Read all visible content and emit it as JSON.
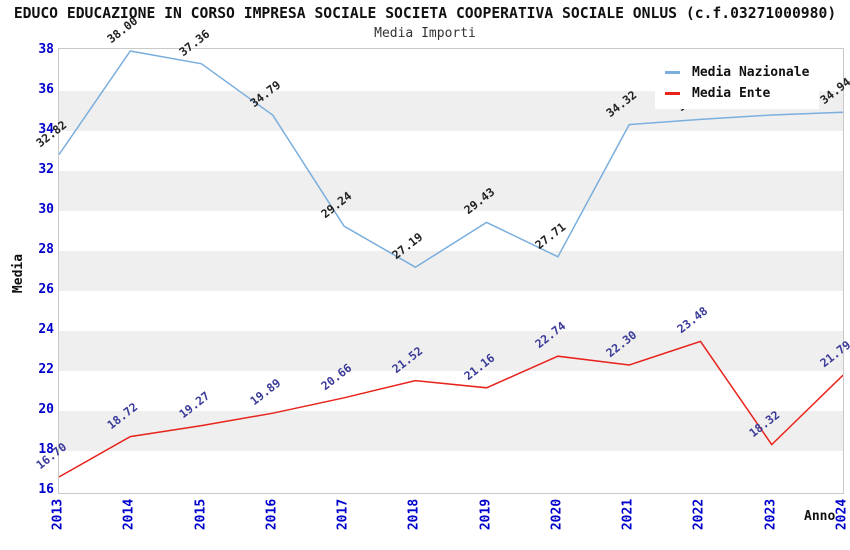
{
  "header": {
    "title": "EDUCO EDUCAZIONE IN CORSO IMPRESA SOCIALE SOCIETA COOPERATIVA SOCIALE ONLUS (c.f.03271000980)",
    "subtitle": "Media Importi"
  },
  "chart_data": {
    "type": "line",
    "x": [
      "2013",
      "2014",
      "2015",
      "2016",
      "2017",
      "2018",
      "2019",
      "2020",
      "2021",
      "2022",
      "2023",
      "2024"
    ],
    "series": [
      {
        "name": "Media Nazionale",
        "color": "#7aaedd",
        "label_color": "#222222",
        "values": [
          32.82,
          38.0,
          37.36,
          34.79,
          29.24,
          27.19,
          29.43,
          27.71,
          34.32,
          34.58,
          34.8,
          34.94
        ]
      },
      {
        "name": "Media Ente",
        "color": "#e8231c",
        "label_color": "#3a3a99",
        "values": [
          16.7,
          18.72,
          19.27,
          19.89,
          20.66,
          21.52,
          21.16,
          22.74,
          22.3,
          23.48,
          18.32,
          21.79
        ]
      }
    ],
    "xlabel": "Anno",
    "ylabel": "Media",
    "ylim": [
      16,
      38
    ],
    "ytick_step": 2,
    "grid_band_color": "#efefef",
    "axis_tick_color": "#0000cc",
    "legend_position": "top-right"
  }
}
